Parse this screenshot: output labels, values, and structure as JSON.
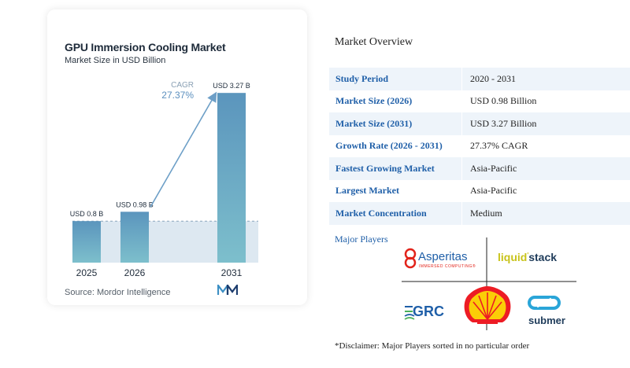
{
  "chart_data": {
    "type": "bar",
    "title": "GPU Immersion Cooling Market",
    "subtitle": "Market Size in USD Billion",
    "categories": [
      "2025",
      "2026",
      "2031"
    ],
    "values": [
      0.8,
      0.98,
      3.27
    ],
    "data_labels": [
      "USD 0.8 B",
      "USD 0.98 B",
      "USD 3.27 B"
    ],
    "cagr_label": "CAGR",
    "cagr_value": "27.37%",
    "source": "Source: Mordor Intelligence",
    "colors": {
      "bar_top": "#5b95bd",
      "bar_bottom": "#7dbfcc",
      "shade": "#dde8f1",
      "arrow": "#6d9fc7",
      "cagr_text": "#5b8fbe"
    }
  },
  "overview": {
    "title": "Market Overview",
    "rows": [
      {
        "label": "Study Period",
        "value": "2020 - 2031"
      },
      {
        "label": "Market Size (2026)",
        "value": "USD 0.98 Billion"
      },
      {
        "label": "Market Size (2031)",
        "value": "USD 3.27 Billion"
      },
      {
        "label": "Growth Rate (2026 - 2031)",
        "value": "27.37% CAGR"
      },
      {
        "label": "Fastest Growing Market",
        "value": "Asia-Pacific"
      },
      {
        "label": "Largest Market",
        "value": "Asia-Pacific"
      },
      {
        "label": "Market Concentration",
        "value": "Medium"
      }
    ]
  },
  "players": {
    "title": "Major Players",
    "logos": [
      {
        "name": "Asperitas",
        "text": "Asperitas",
        "tagline": "IMMERSED COMPUTING®"
      },
      {
        "name": "LiquidStack",
        "text_a": "liquid",
        "text_b": "stack"
      },
      {
        "name": "GRC",
        "text": "GRC"
      },
      {
        "name": "Shell",
        "text": ""
      },
      {
        "name": "Submer",
        "text": "submer"
      }
    ],
    "disclaimer": "*Disclaimer: Major Players sorted in no particular order"
  }
}
